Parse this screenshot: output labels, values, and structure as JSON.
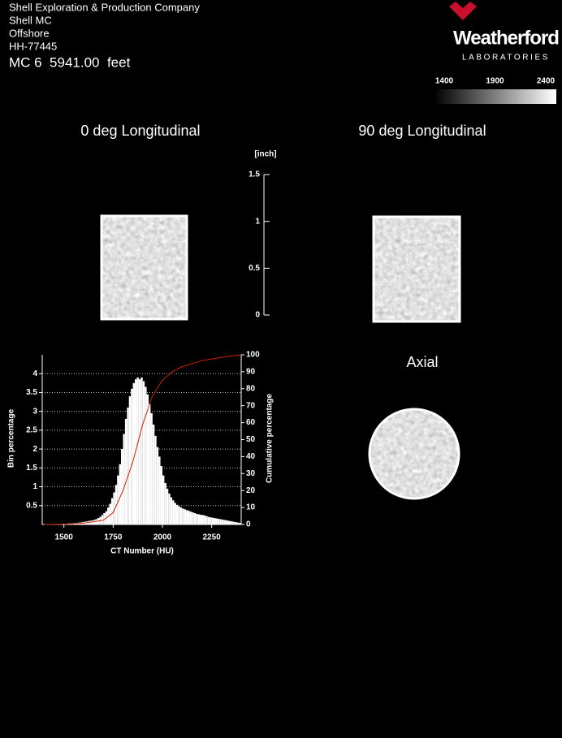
{
  "header": {
    "lines": [
      "Shell Exploration & Production Company",
      "Shell MC",
      "Offshore",
      "HH-77445"
    ],
    "depth": "MC 6  5941.00  feet"
  },
  "logo": {
    "name": "Weatherford",
    "subtitle": "LABORATORIES"
  },
  "colorbar": {
    "ticks": [
      1400,
      1900,
      2400
    ],
    "range": [
      1400,
      2400
    ]
  },
  "panels": {
    "left": "0 deg Longitudinal",
    "right": "90 deg Longitudinal",
    "axial": "Axial"
  },
  "scale": {
    "unit": "[inch]",
    "ticks": [
      0,
      0.5,
      1,
      1.5
    ],
    "range": [
      0,
      1.5
    ]
  },
  "chart_data": {
    "type": "histogram",
    "x_label": "CT Number (HU)",
    "y_label": "Bin percentage",
    "y2_label": "Cumulative percentage",
    "color": "#ffffff",
    "grid": true,
    "bins": [
      1400,
      1410,
      1420,
      1430,
      1440,
      1450,
      1460,
      1470,
      1480,
      1490,
      1500,
      1510,
      1520,
      1530,
      1540,
      1550,
      1560,
      1570,
      1580,
      1590,
      1600,
      1610,
      1620,
      1630,
      1640,
      1650,
      1660,
      1670,
      1680,
      1690,
      1700,
      1710,
      1720,
      1730,
      1740,
      1750,
      1760,
      1770,
      1780,
      1790,
      1800,
      1810,
      1820,
      1830,
      1840,
      1850,
      1860,
      1870,
      1880,
      1890,
      1900,
      1910,
      1920,
      1930,
      1940,
      1950,
      1960,
      1970,
      1980,
      1990,
      2000,
      2010,
      2020,
      2030,
      2040,
      2050,
      2060,
      2070,
      2080,
      2090,
      2100,
      2110,
      2120,
      2130,
      2140,
      2150,
      2160,
      2170,
      2180,
      2190,
      2200,
      2210,
      2220,
      2230,
      2240,
      2250,
      2260,
      2270,
      2280,
      2290,
      2300,
      2310,
      2320,
      2330,
      2340,
      2350,
      2360,
      2370,
      2380,
      2390,
      2400
    ],
    "counts": [
      0,
      0,
      0,
      0,
      0,
      0,
      0.01,
      0.01,
      0.01,
      0.02,
      0.02,
      0.02,
      0.03,
      0.03,
      0.03,
      0.04,
      0.04,
      0.05,
      0.05,
      0.06,
      0.07,
      0.08,
      0.09,
      0.1,
      0.11,
      0.12,
      0.14,
      0.17,
      0.2,
      0.25,
      0.3,
      0.35,
      0.45,
      0.55,
      0.7,
      0.85,
      1.05,
      1.3,
      1.6,
      2.0,
      2.4,
      2.8,
      3.1,
      3.4,
      3.6,
      3.75,
      3.85,
      3.9,
      3.85,
      3.9,
      3.8,
      3.65,
      3.45,
      3.2,
      2.95,
      2.65,
      2.35,
      2.05,
      1.8,
      1.55,
      1.3,
      1.1,
      0.95,
      0.82,
      0.72,
      0.64,
      0.57,
      0.52,
      0.48,
      0.45,
      0.42,
      0.4,
      0.38,
      0.36,
      0.34,
      0.32,
      0.3,
      0.28,
      0.27,
      0.26,
      0.25,
      0.24,
      0.22,
      0.2,
      0.19,
      0.18,
      0.17,
      0.16,
      0.15,
      0.14,
      0.13,
      0.12,
      0.11,
      0.1,
      0.09,
      0.08,
      0.07,
      0.06,
      0.05,
      0.04
    ],
    "cumulative": {
      "axis": "y2",
      "color": "#cc2200",
      "x": [
        1400,
        1500,
        1600,
        1700,
        1750,
        1800,
        1850,
        1900,
        1950,
        2000,
        2050,
        2100,
        2200,
        2300,
        2400
      ],
      "values": [
        0,
        0.2,
        0.8,
        2.5,
        7,
        20,
        37,
        59,
        76,
        85,
        90,
        93,
        96.5,
        98.5,
        100
      ]
    },
    "xlim": [
      1390,
      2400
    ],
    "ylim": [
      0,
      4.5
    ],
    "y2lim": [
      0,
      100
    ],
    "xticks": [
      1500,
      1750,
      2000,
      2250
    ],
    "yticks": [
      0.5,
      1,
      1.5,
      2,
      2.5,
      3,
      3.5,
      4
    ],
    "y2ticks": [
      0,
      10,
      20,
      30,
      40,
      50,
      60,
      70,
      80,
      90,
      100
    ]
  }
}
